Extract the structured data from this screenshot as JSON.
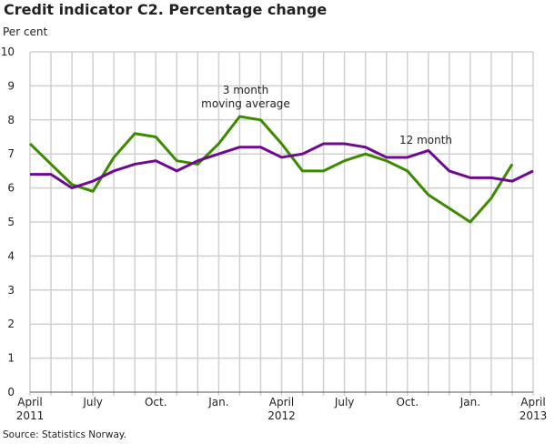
{
  "chart_data": {
    "type": "line",
    "title": "Credit indicator C2. Percentage change",
    "ylabel": "Per cent",
    "source": "Source: Statistics Norway.",
    "ylim": [
      0,
      10
    ],
    "yticks": [
      "0",
      "1",
      "2",
      "3",
      "4",
      "5",
      "6",
      "7",
      "8",
      "9",
      "10"
    ],
    "grid": true,
    "xticks": [
      {
        "month_index": 0,
        "line1": "April",
        "line2": "2011"
      },
      {
        "month_index": 3,
        "line1": "July",
        "line2": ""
      },
      {
        "month_index": 6,
        "line1": "Oct.",
        "line2": ""
      },
      {
        "month_index": 9,
        "line1": "Jan.",
        "line2": ""
      },
      {
        "month_index": 12,
        "line1": "April",
        "line2": "2012"
      },
      {
        "month_index": 15,
        "line1": "July",
        "line2": ""
      },
      {
        "month_index": 18,
        "line1": "Oct.",
        "line2": ""
      },
      {
        "month_index": 21,
        "line1": "Jan.",
        "line2": ""
      },
      {
        "month_index": 24,
        "line1": "April",
        "line2": "2013"
      }
    ],
    "x_months": [
      "2011-04",
      "2011-05",
      "2011-06",
      "2011-07",
      "2011-08",
      "2011-09",
      "2011-10",
      "2011-11",
      "2011-12",
      "2012-01",
      "2012-02",
      "2012-03",
      "2012-04",
      "2012-05",
      "2012-06",
      "2012-07",
      "2012-08",
      "2012-09",
      "2012-10",
      "2012-11",
      "2012-12",
      "2013-01",
      "2013-02",
      "2013-03",
      "2013-04"
    ],
    "series": [
      {
        "name": "3 month moving average",
        "label_lines": [
          "3 month",
          "moving average"
        ],
        "color": "#3d8a00",
        "values": [
          7.3,
          6.7,
          6.1,
          5.9,
          6.9,
          7.6,
          7.5,
          6.8,
          6.7,
          7.3,
          8.1,
          8.0,
          7.3,
          6.5,
          6.5,
          6.8,
          7.0,
          6.8,
          6.5,
          5.8,
          5.4,
          5.0,
          5.7,
          6.7,
          null
        ]
      },
      {
        "name": "12 month",
        "label_lines": [
          "12 month"
        ],
        "color": "#6e0a8f",
        "values": [
          6.4,
          6.4,
          6.0,
          6.2,
          6.5,
          6.7,
          6.8,
          6.5,
          6.8,
          7.0,
          7.2,
          7.2,
          6.9,
          7.0,
          7.3,
          7.3,
          7.2,
          6.9,
          6.9,
          7.1,
          6.5,
          6.3,
          6.3,
          6.2,
          6.5
        ]
      }
    ]
  }
}
